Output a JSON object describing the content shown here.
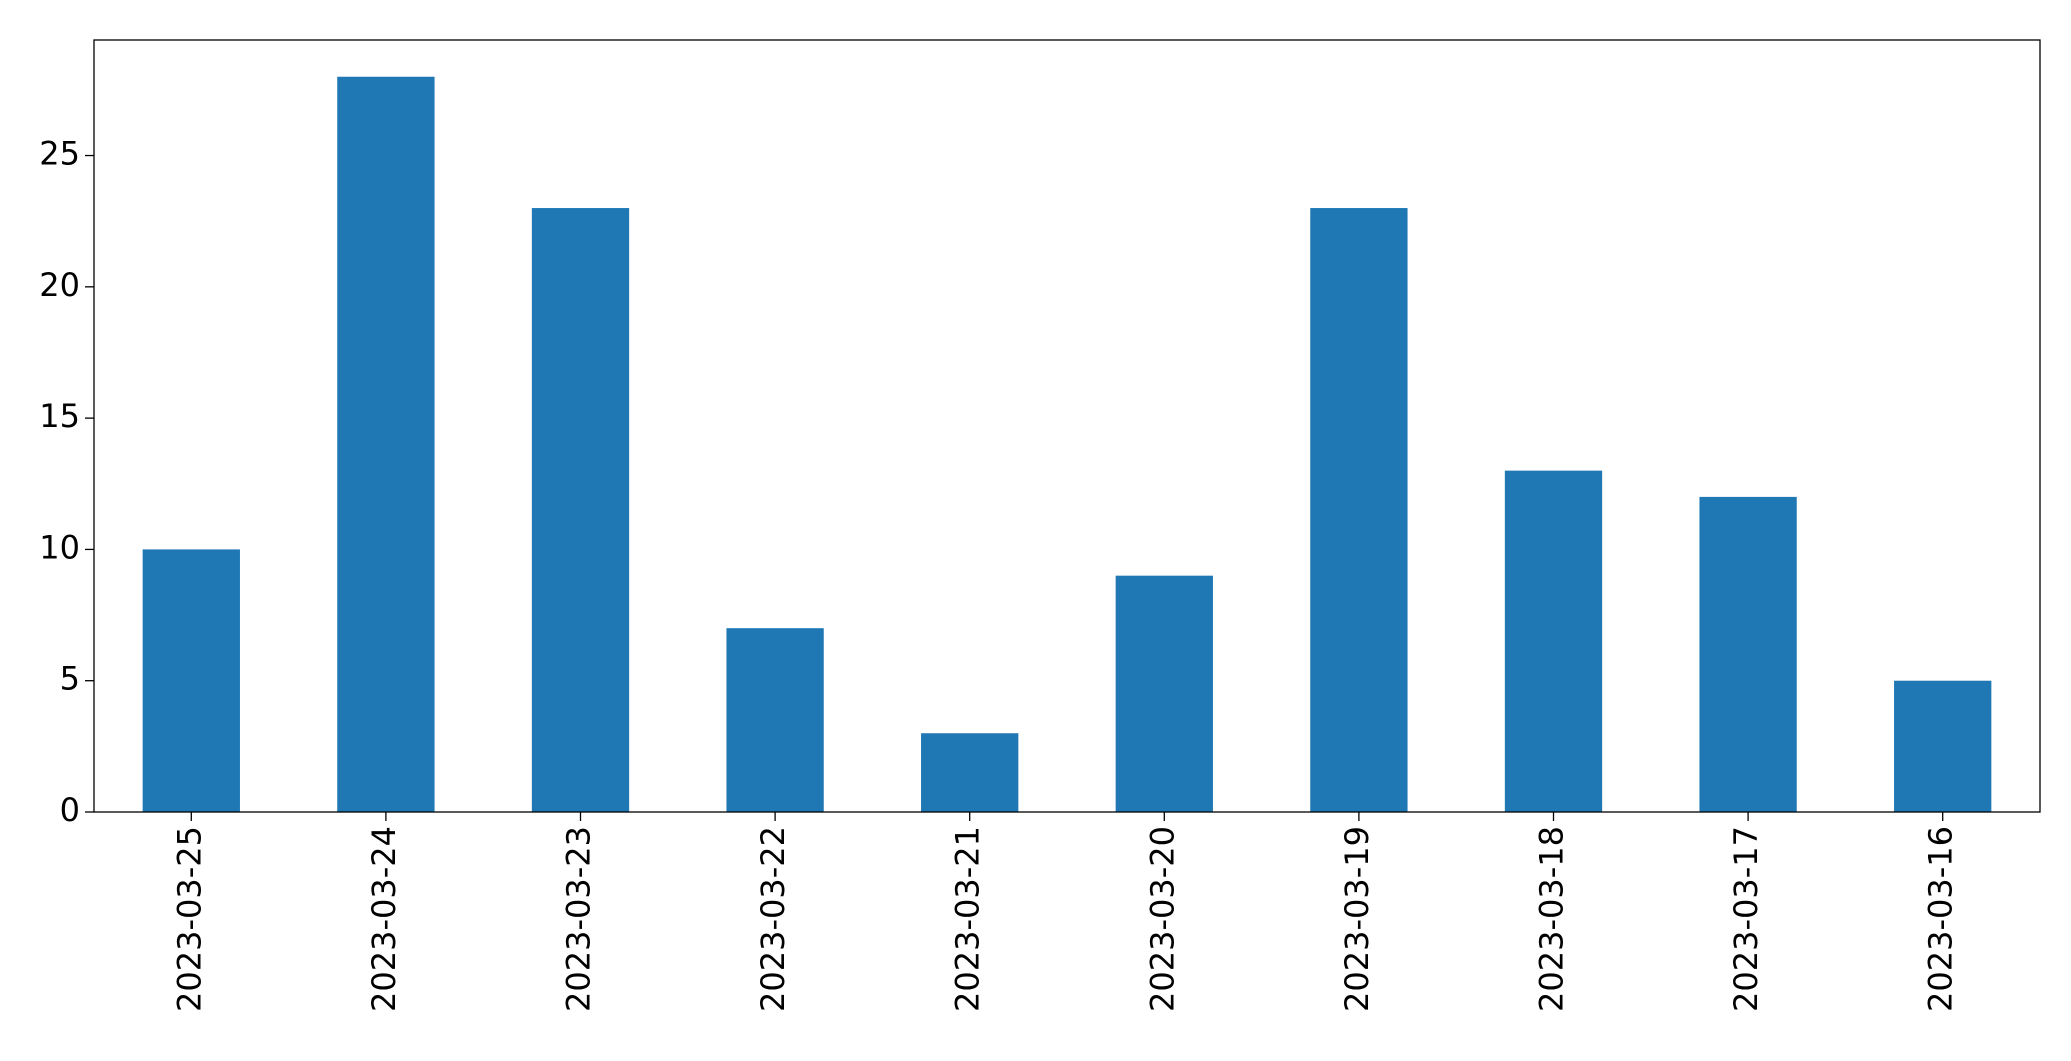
{
  "chart_data": {
    "type": "bar",
    "categories": [
      "2023-03-25",
      "2023-03-24",
      "2023-03-23",
      "2023-03-22",
      "2023-03-21",
      "2023-03-20",
      "2023-03-19",
      "2023-03-18",
      "2023-03-17",
      "2023-03-16"
    ],
    "values": [
      10,
      28,
      23,
      7,
      3,
      9,
      23,
      13,
      12,
      5
    ],
    "color": "#1f77b4",
    "ylim": [
      0,
      29.4
    ],
    "yticks": [
      0,
      5,
      10,
      15,
      20,
      25
    ],
    "grid": false
  }
}
